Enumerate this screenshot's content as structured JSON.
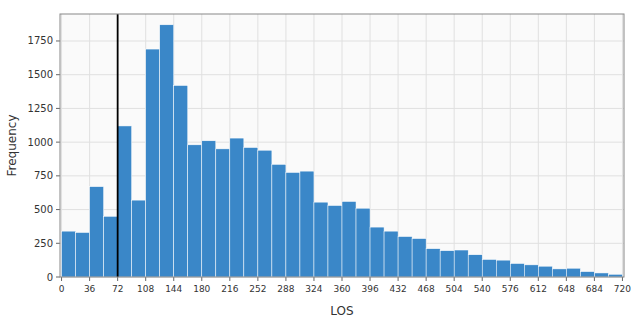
{
  "chart_data": {
    "type": "histogram",
    "bins": [
      0,
      18,
      36,
      54,
      72,
      90,
      108,
      126,
      144,
      162,
      180,
      198,
      216,
      234,
      252,
      270,
      288,
      306,
      324,
      342,
      360,
      378,
      396,
      414,
      432,
      450,
      468,
      486,
      504,
      522,
      540,
      558,
      576,
      594,
      612,
      630,
      648,
      666,
      684,
      702,
      720
    ],
    "values": [
      340,
      330,
      670,
      450,
      1120,
      570,
      1690,
      1870,
      1420,
      980,
      1010,
      950,
      1030,
      960,
      940,
      835,
      775,
      785,
      555,
      530,
      560,
      510,
      370,
      340,
      300,
      285,
      210,
      195,
      200,
      165,
      130,
      125,
      100,
      90,
      80,
      60,
      65,
      40,
      30,
      20
    ],
    "color": "#3a87c8",
    "vline": 72,
    "x_label": "LOS",
    "y_label": "Frequency",
    "xlim": [
      -2,
      722
    ],
    "ylim": [
      0,
      1950
    ],
    "xticks": [
      0,
      36,
      72,
      108,
      144,
      180,
      216,
      252,
      288,
      324,
      360,
      396,
      432,
      468,
      504,
      540,
      576,
      612,
      648,
      684,
      720
    ],
    "yticks": [
      0,
      250,
      500,
      750,
      1000,
      1250,
      1500,
      1750
    ],
    "grid": true
  }
}
